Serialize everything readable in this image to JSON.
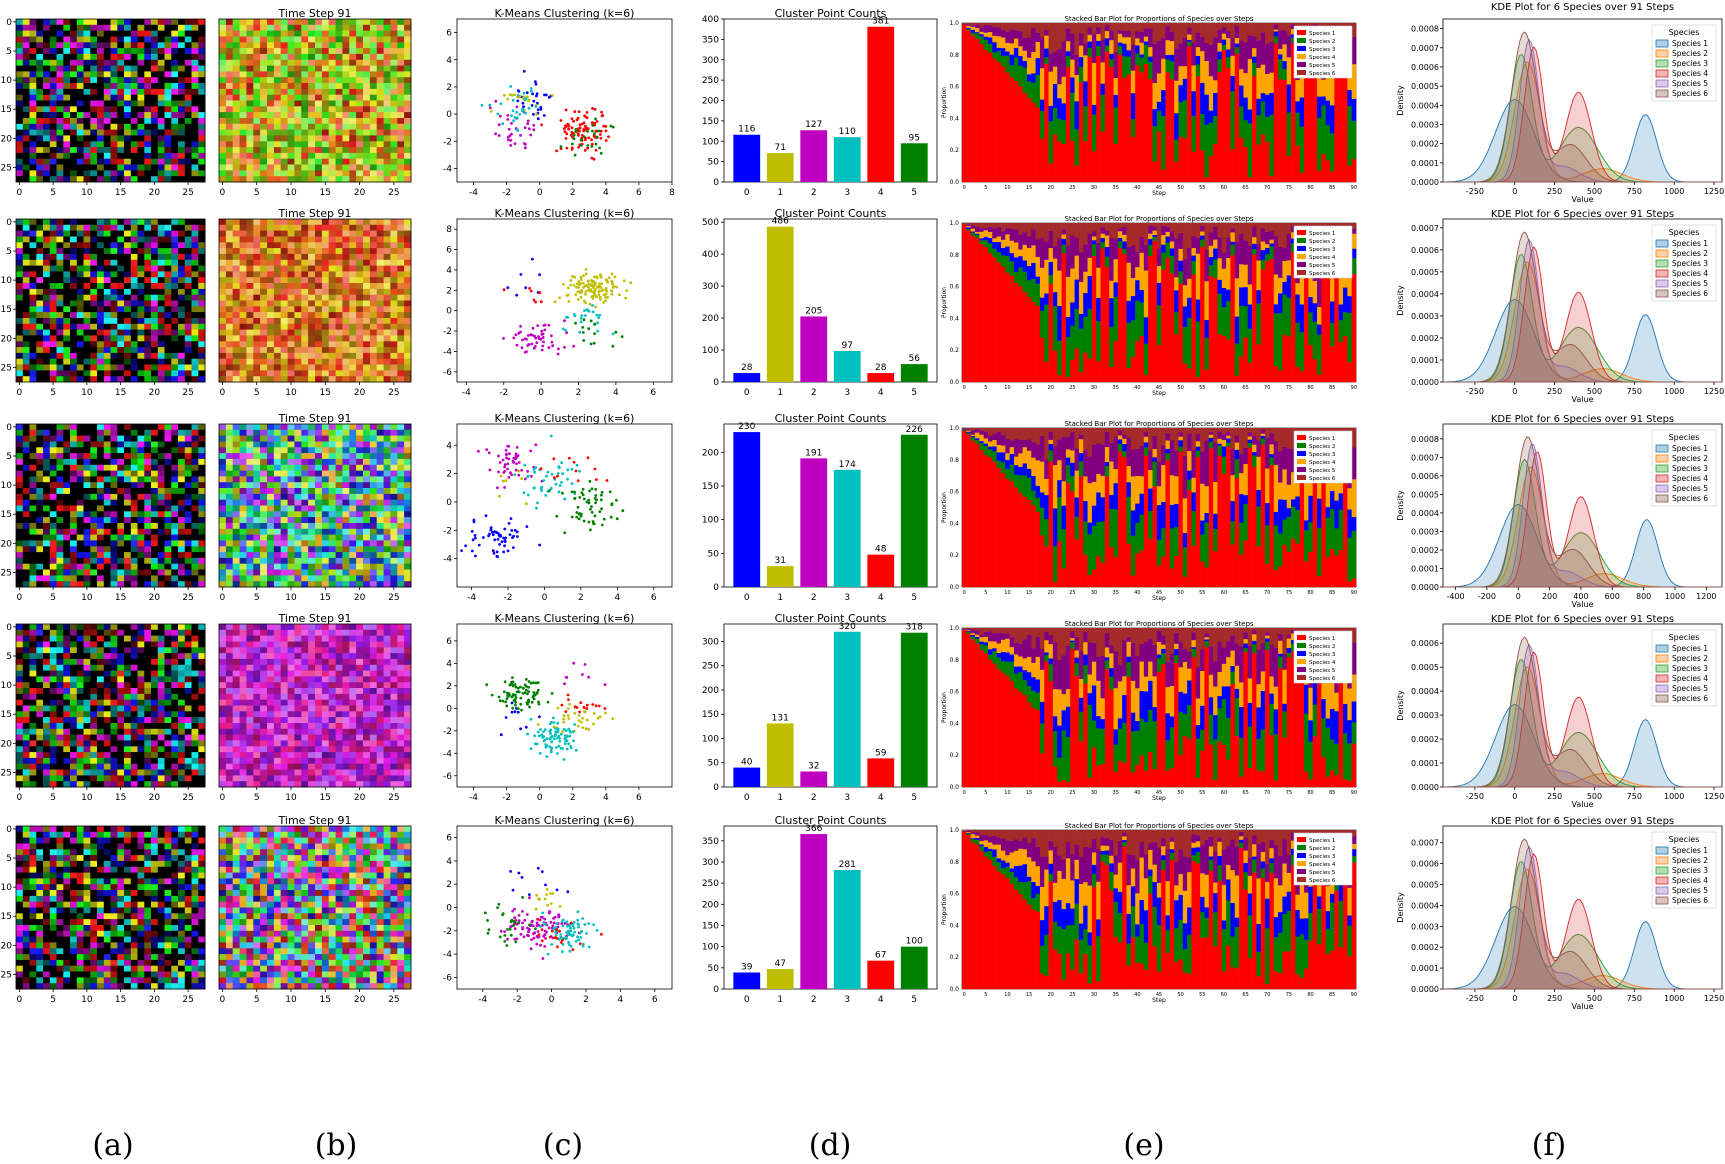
{
  "captions": [
    "(a)",
    "(b)",
    "(c)",
    "(d)",
    "(e)",
    "(f)"
  ],
  "colors": {
    "cluster": [
      "#0000ff",
      "#bfbf00",
      "#c000c0",
      "#00bfbf",
      "#ff0000",
      "#008000"
    ],
    "species": [
      "#ff0000",
      "#008000",
      "#0000ff",
      "#ffa500",
      "#800080",
      "#a52a2a"
    ],
    "kde": [
      "#1f77b4",
      "#ff7f0e",
      "#2ca02c",
      "#d62728",
      "#9467bd",
      "#8c564b"
    ]
  },
  "chart_data": {
    "grid_ticks": [
      "0",
      "5",
      "10",
      "15",
      "20",
      "25"
    ],
    "grid_a_title": "",
    "grid_b_title": "Time Step 91",
    "scatter_title": "K-Means Clustering (k=6)",
    "bar_title": "Cluster Point Counts",
    "bar_categories": [
      "0",
      "1",
      "2",
      "3",
      "4",
      "5"
    ],
    "stacked_title": "Stacked Bar Plot for Proportions of Species over Steps",
    "stacked_xlabel": "Step",
    "stacked_ylabel": "Proportion",
    "kde_title": "KDE Plot for 6 Species over 91 Steps",
    "kde_xlabel": "Value",
    "kde_ylabel": "Density",
    "species_legend_title": "Species",
    "species": [
      "Species 1",
      "Species 2",
      "Species 3",
      "Species 4",
      "Species 5",
      "Species 6"
    ],
    "rows": [
      {
        "bar_values": [
          116,
          71,
          127,
          110,
          381,
          95
        ],
        "bar_ylim": [
          0,
          400
        ],
        "bar_yticks": [
          0,
          50,
          100,
          150,
          200,
          250,
          300,
          350,
          400
        ],
        "scatter_xlim": [
          -5,
          8
        ],
        "scatter_ylim": [
          -5,
          7
        ],
        "scatter_xticks": [
          -4,
          -2,
          0,
          2,
          4,
          6,
          8
        ],
        "scatter_yticks": [
          -4,
          -2,
          0,
          2,
          4,
          6
        ],
        "kde_xlim": [
          -450,
          1300
        ],
        "kde_xticks": [
          -250,
          0,
          250,
          500,
          750,
          1000,
          1250
        ],
        "kde_ylim": [
          0,
          0.00085
        ],
        "kde_yticks": [
          0,
          0.0001,
          0.0002,
          0.0003,
          0.0004,
          0.0005,
          0.0006,
          0.0007,
          0.0008
        ],
        "kde_ytick_labels": [
          "0.0000",
          "0.0001",
          "0.0002",
          "0.0003",
          "0.0004",
          "0.0005",
          "0.0006",
          "0.0007",
          "0.0008"
        ]
      },
      {
        "bar_values": [
          28,
          486,
          205,
          97,
          28,
          56
        ],
        "bar_ylim": [
          0,
          510
        ],
        "bar_yticks": [
          0,
          100,
          200,
          300,
          400,
          500
        ],
        "scatter_xlim": [
          -4.5,
          7
        ],
        "scatter_ylim": [
          -7,
          9
        ],
        "scatter_xticks": [
          -4,
          -2,
          0,
          2,
          4,
          6
        ],
        "scatter_yticks": [
          -6,
          -4,
          -2,
          0,
          2,
          4,
          6,
          8
        ],
        "kde_xlim": [
          -450,
          1300
        ],
        "kde_xticks": [
          -250,
          0,
          250,
          500,
          750,
          1000,
          1250
        ],
        "kde_ylim": [
          0,
          0.00074
        ],
        "kde_yticks": [
          0,
          0.0001,
          0.0002,
          0.0003,
          0.0004,
          0.0005,
          0.0006,
          0.0007
        ],
        "kde_ytick_labels": [
          "0.0000",
          "0.0001",
          "0.0002",
          "0.0003",
          "0.0004",
          "0.0005",
          "0.0006",
          "0.0007"
        ]
      },
      {
        "bar_values": [
          230,
          31,
          191,
          174,
          48,
          226
        ],
        "bar_ylim": [
          0,
          242
        ],
        "bar_yticks": [
          0,
          50,
          100,
          150,
          200
        ],
        "scatter_xlim": [
          -4.8,
          7
        ],
        "scatter_ylim": [
          -6,
          5.5
        ],
        "scatter_xticks": [
          -4,
          -2,
          0,
          2,
          4,
          6
        ],
        "scatter_yticks": [
          -4,
          -2,
          0,
          2,
          4
        ],
        "kde_xlim": [
          -480,
          1300
        ],
        "kde_xticks": [
          -400,
          -200,
          0,
          200,
          400,
          600,
          800,
          1000,
          1200
        ],
        "kde_ylim": [
          0,
          0.00088
        ],
        "kde_yticks": [
          0,
          0.0001,
          0.0002,
          0.0003,
          0.0004,
          0.0005,
          0.0006,
          0.0007,
          0.0008
        ],
        "kde_ytick_labels": [
          "0.0000",
          "0.0001",
          "0.0002",
          "0.0003",
          "0.0004",
          "0.0005",
          "0.0006",
          "0.0007",
          "0.0008"
        ]
      },
      {
        "bar_values": [
          40,
          131,
          32,
          320,
          59,
          318
        ],
        "bar_ylim": [
          0,
          336
        ],
        "bar_yticks": [
          0,
          50,
          100,
          150,
          200,
          250,
          300
        ],
        "scatter_xlim": [
          -5,
          8
        ],
        "scatter_ylim": [
          -7,
          7.5
        ],
        "scatter_xticks": [
          -4,
          -2,
          0,
          2,
          4,
          6
        ],
        "scatter_yticks": [
          -6,
          -4,
          -2,
          0,
          2,
          4,
          6
        ],
        "kde_xlim": [
          -450,
          1300
        ],
        "kde_xticks": [
          -250,
          0,
          250,
          500,
          750,
          1000,
          1250
        ],
        "kde_ylim": [
          0,
          0.00068
        ],
        "kde_yticks": [
          0,
          0.0001,
          0.0002,
          0.0003,
          0.0004,
          0.0005,
          0.0006
        ],
        "kde_ytick_labels": [
          "0.0000",
          "0.0001",
          "0.0002",
          "0.0003",
          "0.0004",
          "0.0005",
          "0.0006"
        ]
      },
      {
        "bar_values": [
          39,
          47,
          366,
          281,
          67,
          100
        ],
        "bar_ylim": [
          0,
          385
        ],
        "bar_yticks": [
          0,
          50,
          100,
          150,
          200,
          250,
          300,
          350
        ],
        "scatter_xlim": [
          -5.5,
          7
        ],
        "scatter_ylim": [
          -7,
          7
        ],
        "scatter_xticks": [
          -4,
          -2,
          0,
          2,
          4,
          6
        ],
        "scatter_yticks": [
          -6,
          -4,
          -2,
          0,
          2,
          4,
          6
        ],
        "kde_xlim": [
          -450,
          1300
        ],
        "kde_xticks": [
          -250,
          0,
          250,
          500,
          750,
          1000,
          1250
        ],
        "kde_ylim": [
          0,
          0.00078
        ],
        "kde_yticks": [
          0,
          0.0001,
          0.0002,
          0.0003,
          0.0004,
          0.0005,
          0.0006,
          0.0007
        ],
        "kde_ytick_labels": [
          "0.0000",
          "0.0001",
          "0.0002",
          "0.0003",
          "0.0004",
          "0.0005",
          "0.0006",
          "0.0007"
        ]
      }
    ],
    "stacked_xticks": [
      0,
      5,
      10,
      15,
      20,
      25,
      30,
      35,
      40,
      45,
      50,
      55,
      60,
      65,
      70,
      75,
      80,
      85,
      90
    ],
    "stacked_yticks": [
      "0.0",
      "0.2",
      "0.4",
      "0.6",
      "0.8",
      "1.0"
    ],
    "stacked_steps": 91
  }
}
